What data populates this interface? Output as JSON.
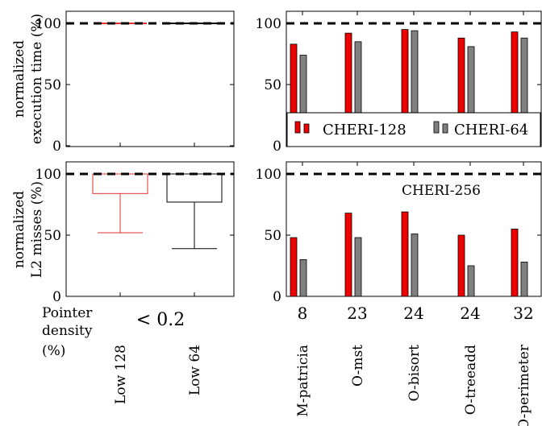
{
  "colors": {
    "cheri128": "#ee0000",
    "cheri64": "#808080",
    "low128_box": "#e03030",
    "low64_box": "#000000"
  },
  "left_column": {
    "pointer_density_label": [
      "Pointer",
      "density",
      "(%)"
    ],
    "pointer_density_value": "< 0.2",
    "categories": [
      "Low 128",
      "Low 64"
    ]
  },
  "right_column": {
    "pointer_density_values": [
      "8",
      "23",
      "24",
      "24",
      "32"
    ],
    "categories": [
      "M-patricia",
      "O-mst",
      "O-bisort",
      "O-treeadd",
      "O-perimeter"
    ]
  },
  "legend": {
    "items": [
      {
        "label": "CHERI-128",
        "color": "#ee0000"
      },
      {
        "label": "CHERI-64",
        "color": "#808080"
      }
    ]
  },
  "reference_label": "CHERI-256",
  "chart_data": [
    {
      "type": "box",
      "panel": "top-left",
      "ylabel": [
        "normalized",
        "execution time (%)"
      ],
      "ylim": [
        0,
        110
      ],
      "yticks": [
        "0",
        "50",
        "100"
      ],
      "reference_line": 100,
      "categories": [
        "Low 128",
        "Low 64"
      ],
      "boxes": [
        {
          "name": "Low 128",
          "min": 100,
          "q1": 100,
          "median": 100,
          "q3": 100,
          "max": 100
        },
        {
          "name": "Low 64",
          "min": 100,
          "q1": 100,
          "median": 100,
          "q3": 100,
          "max": 100
        }
      ]
    },
    {
      "type": "bar",
      "panel": "top-right",
      "ylim": [
        0,
        110
      ],
      "yticks": [
        "0",
        "50",
        "100"
      ],
      "reference_line": 100,
      "categories": [
        "M-patricia",
        "O-mst",
        "O-bisort",
        "O-treeadd",
        "O-perimeter"
      ],
      "series": [
        {
          "name": "CHERI-128",
          "values": [
            83,
            92,
            95,
            88,
            93
          ]
        },
        {
          "name": "CHERI-64",
          "values": [
            74,
            85,
            94,
            81,
            88
          ]
        }
      ],
      "legend": "bottom-right"
    },
    {
      "type": "box",
      "panel": "bottom-left",
      "ylabel": [
        "normalized",
        "L2 misses (%)"
      ],
      "ylim": [
        0,
        110
      ],
      "yticks": [
        "0",
        "50",
        "100"
      ],
      "reference_line": 100,
      "categories": [
        "Low 128",
        "Low 64"
      ],
      "boxes": [
        {
          "name": "Low 128",
          "min": 52,
          "q1": 84,
          "median": 100,
          "q3": 100,
          "max": 100
        },
        {
          "name": "Low 64",
          "min": 39,
          "q1": 77,
          "median": 100,
          "q3": 100,
          "max": 100
        }
      ]
    },
    {
      "type": "bar",
      "panel": "bottom-right",
      "ylim": [
        0,
        110
      ],
      "yticks": [
        "0",
        "50",
        "100"
      ],
      "reference_line": 100,
      "categories": [
        "M-patricia",
        "O-mst",
        "O-bisort",
        "O-treeadd",
        "O-perimeter"
      ],
      "series": [
        {
          "name": "CHERI-128",
          "values": [
            48,
            68,
            69,
            50,
            55
          ]
        },
        {
          "name": "CHERI-64",
          "values": [
            30,
            48,
            51,
            25,
            28
          ]
        }
      ]
    }
  ]
}
